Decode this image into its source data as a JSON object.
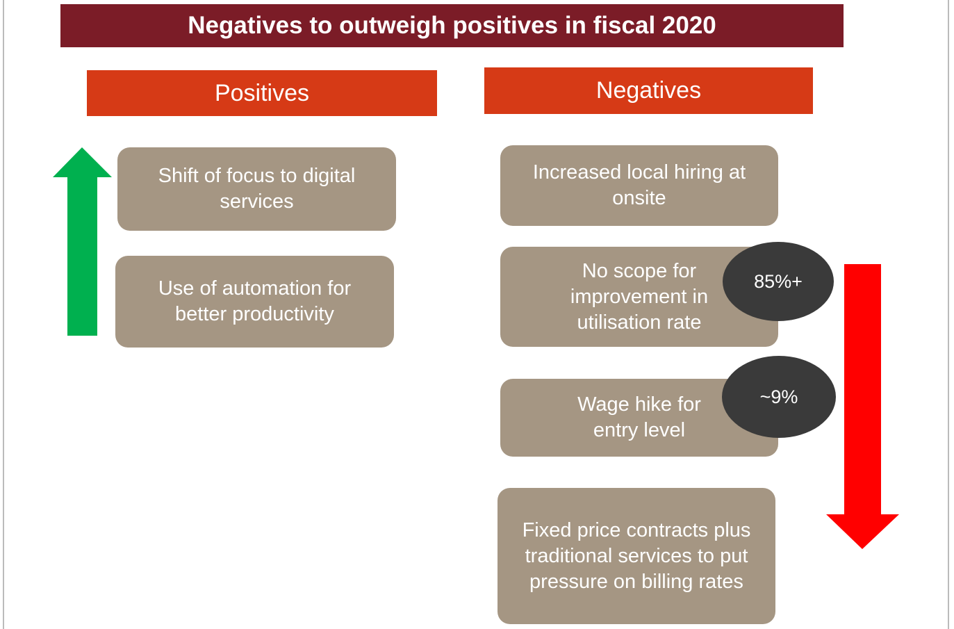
{
  "title": "Negatives to outweigh positives in fiscal 2020",
  "positives": {
    "header": "Positives",
    "items": [
      "Shift of focus to digital services",
      "Use of automation for better productivity"
    ]
  },
  "negatives": {
    "header": "Negatives",
    "items": [
      "Increased local hiring at onsite",
      "No scope for improvement in utilisation rate",
      "Wage hike for entry level",
      "Fixed price contracts plus traditional services to put pressure on billing rates"
    ]
  },
  "badges": [
    "85%+",
    "~9%"
  ]
}
